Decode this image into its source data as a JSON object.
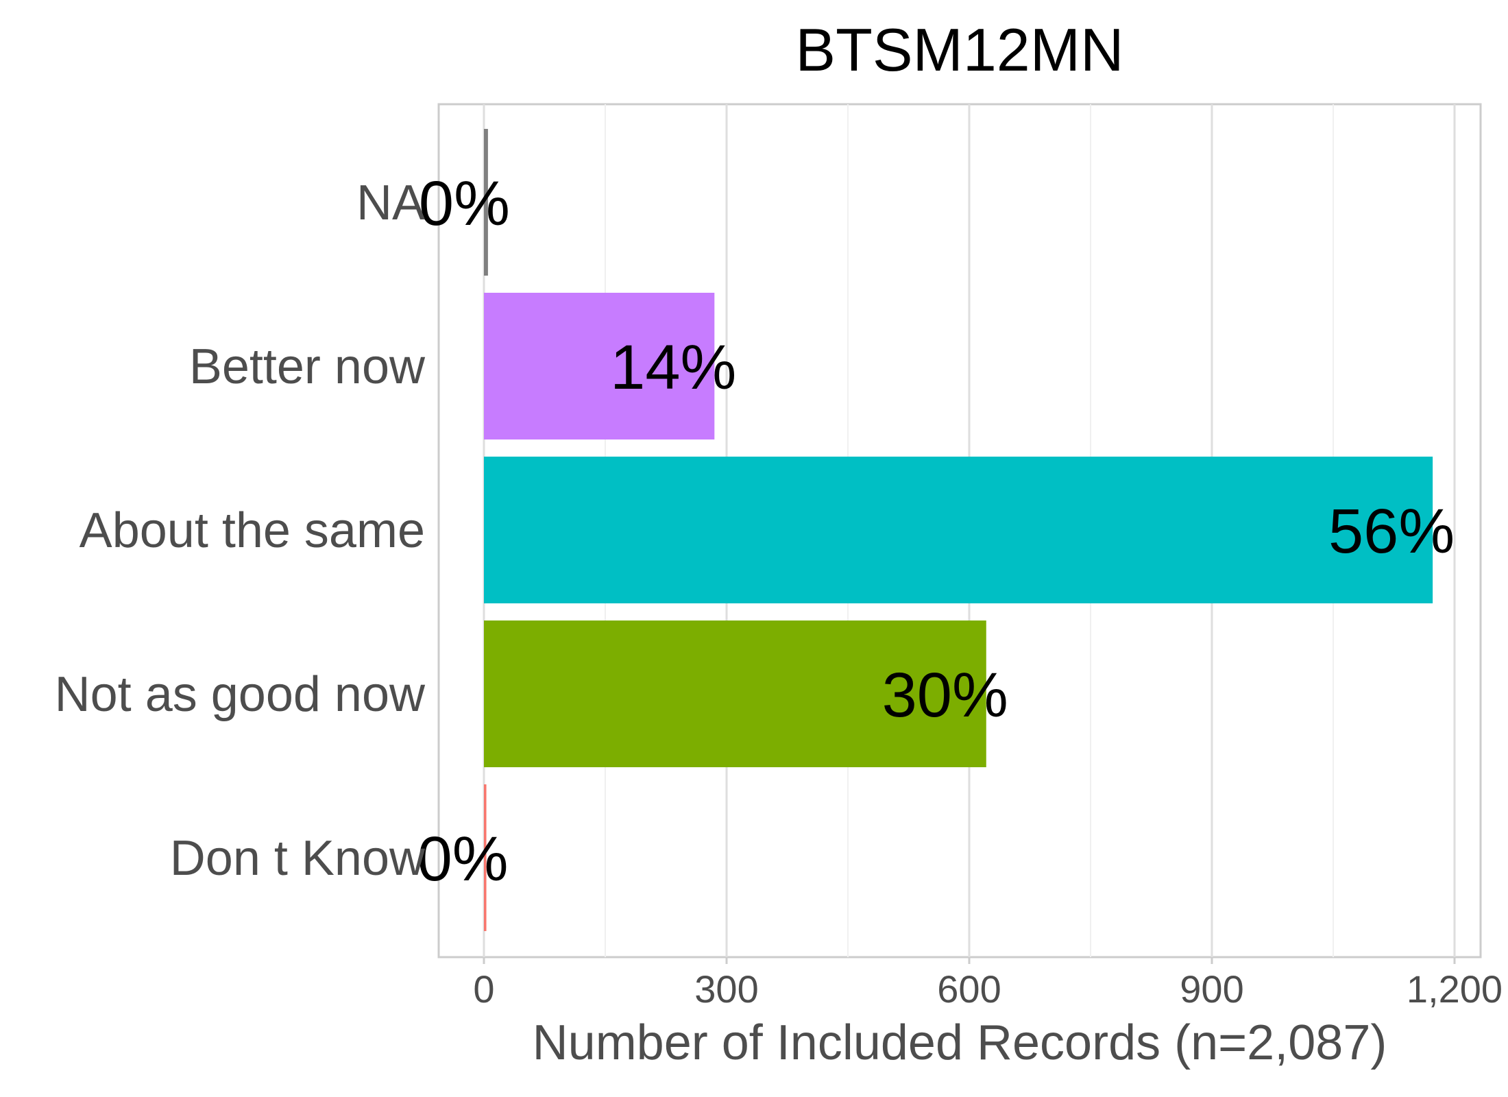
{
  "chart_data": {
    "type": "bar",
    "orientation": "horizontal",
    "title": "BTSM12MN",
    "xlabel": "Number of Included Records (n=2,087)",
    "ylabel": "",
    "xlim": [
      0,
      1200
    ],
    "xticks": [
      0,
      300,
      600,
      900,
      1200
    ],
    "xtick_labels": [
      "0",
      "300",
      "600",
      "900",
      "1,200"
    ],
    "grid": true,
    "legend": "none",
    "categories": [
      "NA",
      "Better now",
      "About the same",
      "Not as good now",
      "Don t Know"
    ],
    "values": [
      5,
      285,
      1173,
      621,
      3
    ],
    "labels": [
      "0%",
      "14%",
      "56%",
      "30%",
      "0%"
    ],
    "colors": [
      "#7f7f7f",
      "#c77cff",
      "#00bfc4",
      "#7cae00",
      "#f8766d"
    ]
  }
}
